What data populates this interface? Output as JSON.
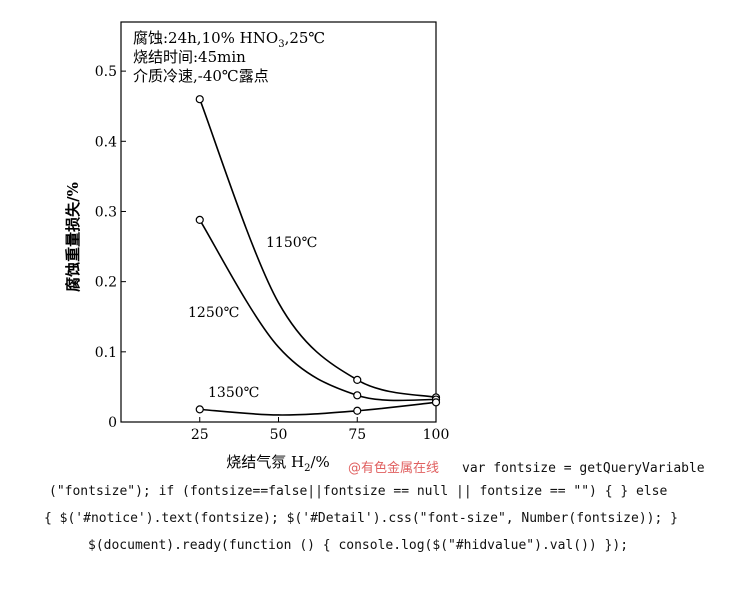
{
  "chart_data": {
    "type": "line",
    "xlabel_prefix": "烧结气氛 H",
    "xlabel_sub": "2",
    "xlabel_suffix": "/%",
    "ylabel": "腐蚀重量损失/%",
    "xlim": [
      0,
      100
    ],
    "ylim": [
      0,
      0.57
    ],
    "xticks": [
      25,
      50,
      75,
      100
    ],
    "yticks": [
      0,
      0.1,
      0.2,
      0.3,
      0.4,
      0.5
    ],
    "yticklabels": [
      "0",
      "0.1",
      "0.2",
      "0.3",
      "0.4",
      "0.5"
    ],
    "conditions": {
      "line1_prefix": "腐蚀:24h,10% HNO",
      "line1_sub": "3",
      "line1_suffix": ",25℃",
      "line2": "烧结时间:45min",
      "line3": "介质冷速,-40℃露点"
    },
    "series": [
      {
        "name": "1150℃",
        "x": [
          25,
          75,
          100
        ],
        "y": [
          0.46,
          0.06,
          0.035
        ]
      },
      {
        "name": "1250℃",
        "x": [
          25,
          75,
          100
        ],
        "y": [
          0.288,
          0.038,
          0.032
        ]
      },
      {
        "name": "1350℃",
        "x": [
          25,
          75,
          100
        ],
        "y": [
          0.018,
          0.016,
          0.028
        ]
      }
    ]
  },
  "watermark": "@有色金属在线",
  "code_lines": [
    "var fontsize = getQueryVariable",
    "(\"fontsize\"); if (fontsize==false||fontsize == null || fontsize == \"\") { } else",
    "{ $('#notice').text(fontsize); $('#Detail').css(\"font-size\", Number(fontsize)); }",
    "$(document).ready(function () { console.log($(\"#hidvalue\").val()) });"
  ]
}
